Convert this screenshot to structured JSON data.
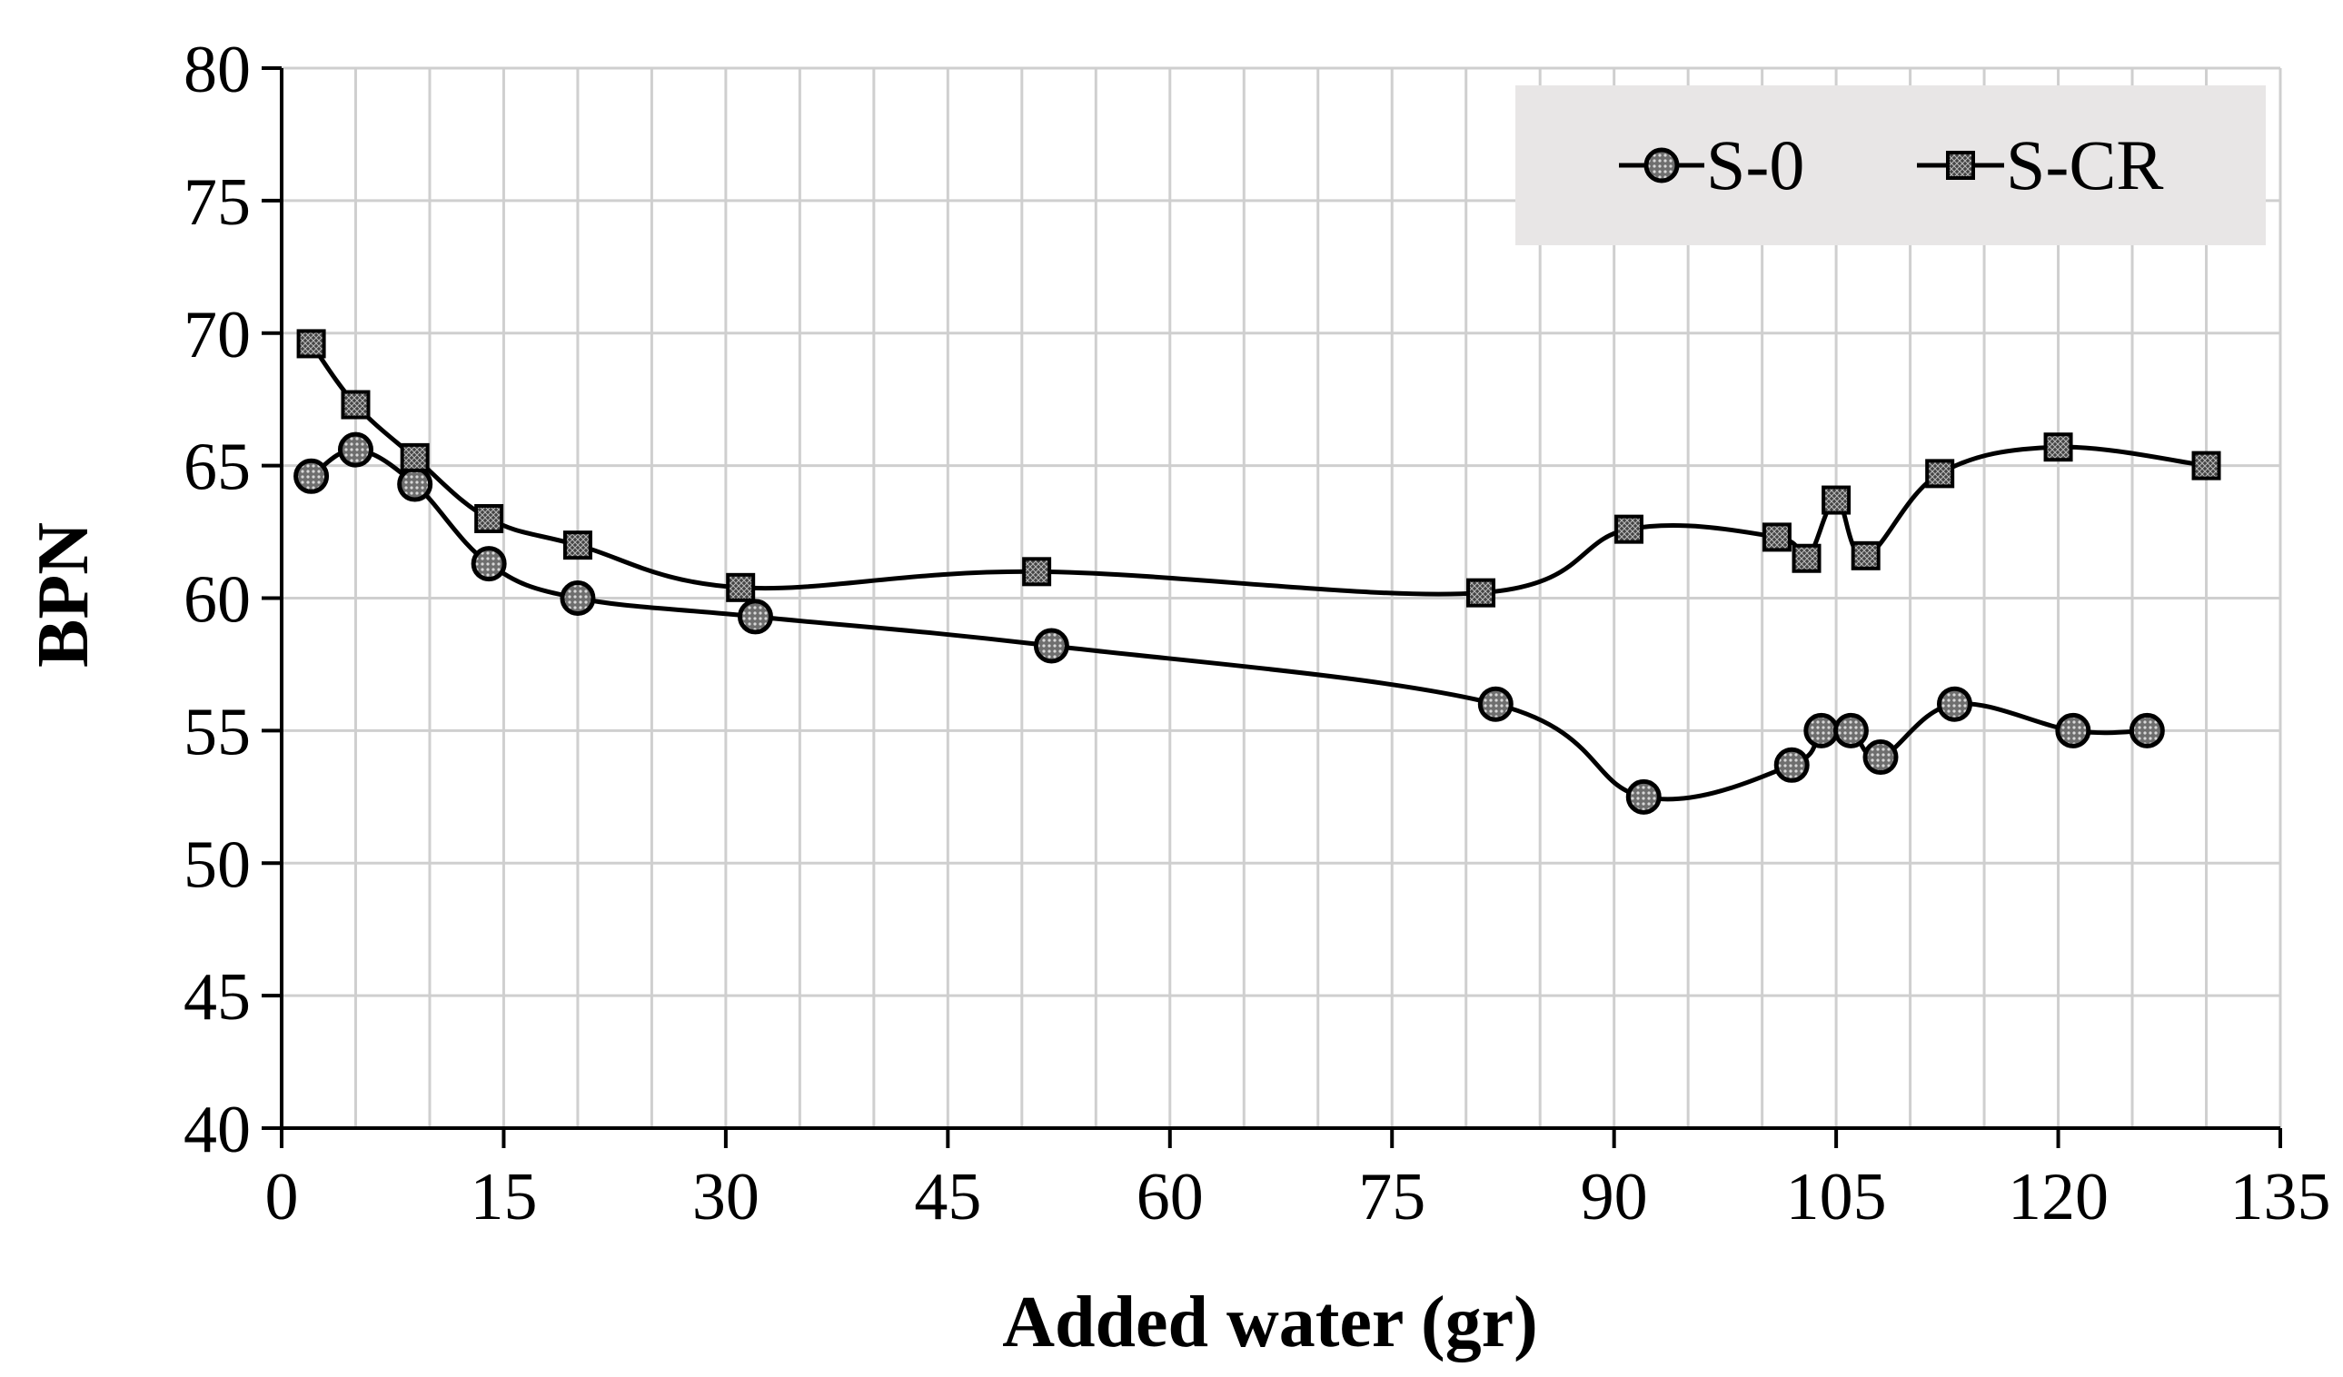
{
  "chart_data": {
    "type": "line",
    "title": "",
    "xlabel": "Added water (gr)",
    "ylabel": "BPN",
    "xlim": [
      0,
      135
    ],
    "ylim": [
      40,
      80
    ],
    "x_ticks": [
      0,
      15,
      30,
      45,
      60,
      75,
      90,
      105,
      120,
      135
    ],
    "x_tick_labels": [
      "0",
      "15",
      "30",
      "45",
      "60",
      "75",
      "90",
      "105",
      "120",
      "135"
    ],
    "y_ticks": [
      40,
      45,
      50,
      55,
      60,
      65,
      70,
      75,
      80
    ],
    "y_tick_labels": [
      "40",
      "45",
      "50",
      "55",
      "60",
      "65",
      "70",
      "75",
      "80"
    ],
    "grid": true,
    "legend_position": "top-right",
    "series": [
      {
        "name": "S-0",
        "marker": "circle",
        "x": [
          2,
          5,
          9,
          14,
          20,
          32,
          52,
          82,
          92,
          102,
          104,
          106,
          108,
          113,
          121,
          126
        ],
        "y": [
          64.6,
          65.6,
          64.3,
          61.3,
          60.0,
          59.3,
          58.2,
          56.0,
          52.5,
          53.7,
          55.0,
          55.0,
          54.0,
          56.0,
          55.0,
          55.0
        ]
      },
      {
        "name": "S-CR",
        "marker": "square",
        "x": [
          2,
          5,
          9,
          14,
          20,
          31,
          51,
          81,
          91,
          101,
          103,
          105,
          107,
          112,
          120,
          130
        ],
        "y": [
          69.6,
          67.3,
          65.3,
          63.0,
          62.0,
          60.4,
          61.0,
          60.2,
          62.6,
          62.3,
          61.5,
          63.7,
          61.6,
          64.7,
          65.7,
          65.0
        ]
      }
    ]
  }
}
